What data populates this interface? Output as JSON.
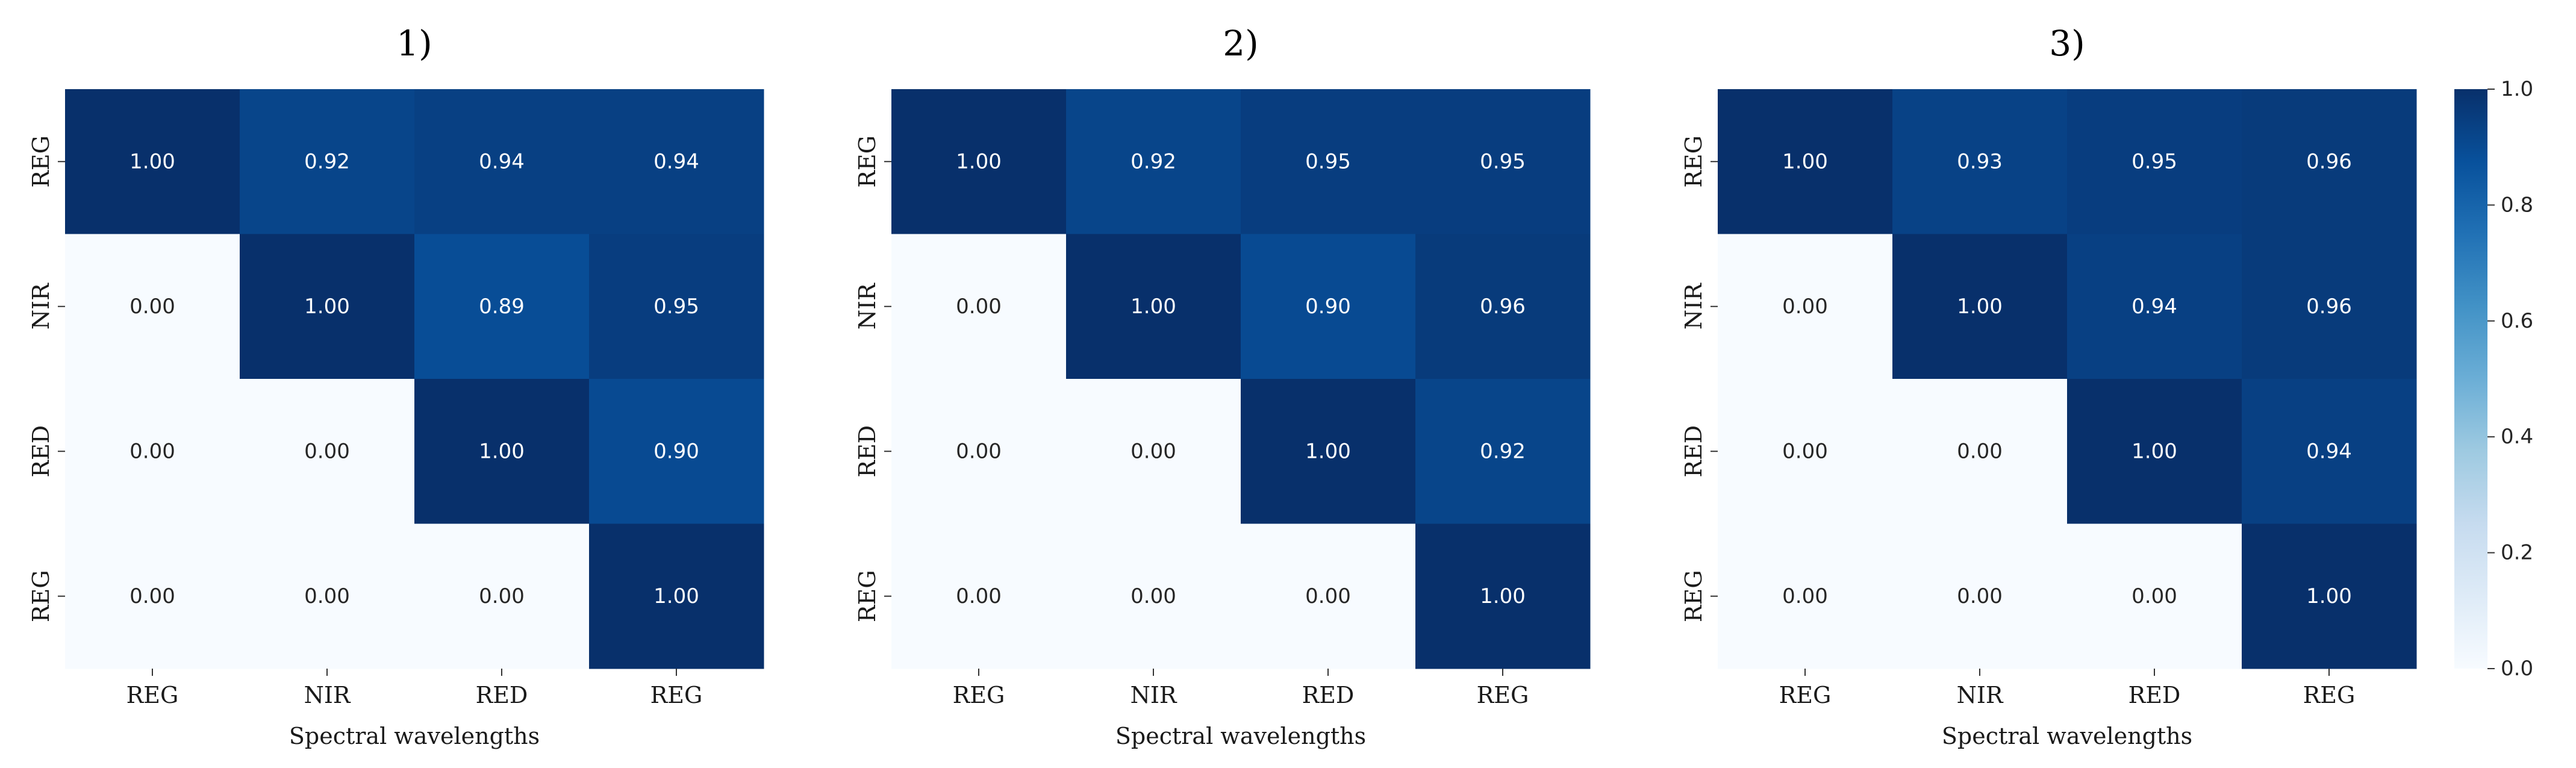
{
  "colorbar": {
    "min": 0.0,
    "max": 1.0,
    "ticks": [
      "0.0",
      "0.2",
      "0.4",
      "0.6",
      "0.8",
      "1.0"
    ],
    "colormap": "Blues",
    "colors": {
      "low": "#f7fbff",
      "mid": "#6baed6",
      "high": "#08306b"
    }
  },
  "chart_data": [
    {
      "type": "heatmap",
      "title": "1)",
      "xlabel": "Spectral wavelengths",
      "ylabel": "",
      "x_ticks": [
        "REG",
        "NIR",
        "RED",
        "REG"
      ],
      "y_ticks": [
        "REG",
        "NIR",
        "RED",
        "REG"
      ],
      "values": [
        [
          1.0,
          0.92,
          0.94,
          0.94
        ],
        [
          0.0,
          1.0,
          0.89,
          0.95
        ],
        [
          0.0,
          0.0,
          1.0,
          0.9
        ],
        [
          0.0,
          0.0,
          0.0,
          1.0
        ]
      ],
      "value_range": [
        0.0,
        1.0
      ],
      "grid": false
    },
    {
      "type": "heatmap",
      "title": "2)",
      "xlabel": "Spectral wavelengths",
      "ylabel": "",
      "x_ticks": [
        "REG",
        "NIR",
        "RED",
        "REG"
      ],
      "y_ticks": [
        "REG",
        "NIR",
        "RED",
        "REG"
      ],
      "values": [
        [
          1.0,
          0.92,
          0.95,
          0.95
        ],
        [
          0.0,
          1.0,
          0.9,
          0.96
        ],
        [
          0.0,
          0.0,
          1.0,
          0.92
        ],
        [
          0.0,
          0.0,
          0.0,
          1.0
        ]
      ],
      "value_range": [
        0.0,
        1.0
      ],
      "grid": false
    },
    {
      "type": "heatmap",
      "title": "3)",
      "xlabel": "Spectral wavelengths",
      "ylabel": "",
      "x_ticks": [
        "REG",
        "NIR",
        "RED",
        "REG"
      ],
      "y_ticks": [
        "REG",
        "NIR",
        "RED",
        "REG"
      ],
      "values": [
        [
          1.0,
          0.93,
          0.95,
          0.96
        ],
        [
          0.0,
          1.0,
          0.94,
          0.96
        ],
        [
          0.0,
          0.0,
          1.0,
          0.94
        ],
        [
          0.0,
          0.0,
          0.0,
          1.0
        ]
      ],
      "value_range": [
        0.0,
        1.0
      ],
      "grid": false
    }
  ]
}
